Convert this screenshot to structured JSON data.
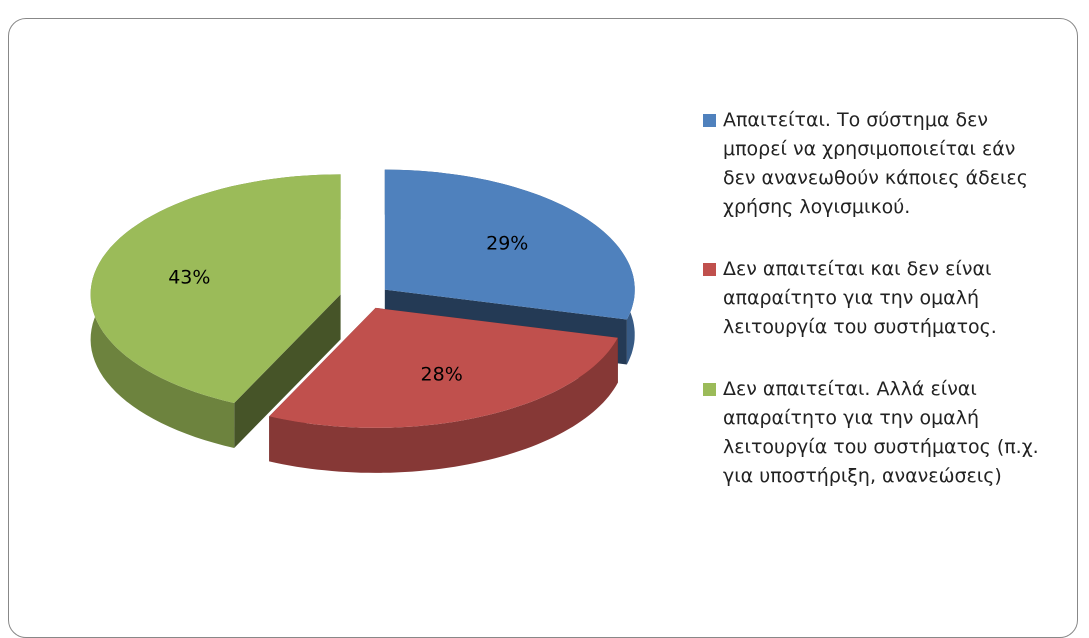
{
  "chart_data": {
    "type": "pie",
    "categories": [
      "Απαιτείται. Το σύστημα δεν μπορεί να χρησιμοποιείται εάν δεν ανανεωθούν κάποιες άδειες χρήσης λογισμικού.",
      "Δεν απαιτείται και δεν είναι απαραίτητο για την ομαλή λειτουργία του συστήματος.",
      "Δεν απαιτείται. Αλλά είναι απαραίτητο για την ομαλή λειτουργία του συστήματος (π.χ. για υποστήριξη, ανανεώσεις)"
    ],
    "values": [
      29,
      28,
      43
    ],
    "value_labels": [
      "29%",
      "28%",
      "43%"
    ],
    "colors": [
      "#4f81bd",
      "#c0504d",
      "#9bbb59"
    ],
    "legend": "right"
  }
}
